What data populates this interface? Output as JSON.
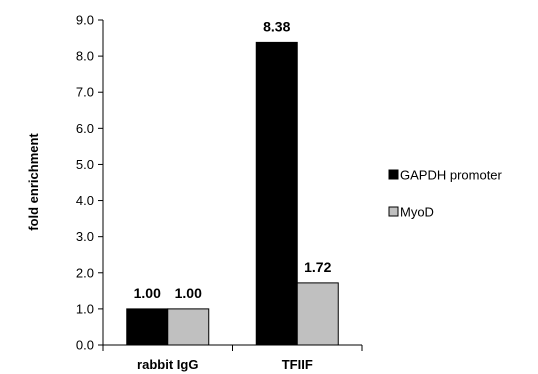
{
  "chart_data": {
    "type": "bar",
    "title": "",
    "xlabel": "",
    "ylabel": "fold enrichment",
    "ylim": [
      0,
      9
    ],
    "yticks": [
      "0.0",
      "1.0",
      "2.0",
      "3.0",
      "4.0",
      "5.0",
      "6.0",
      "7.0",
      "8.0",
      "9.0"
    ],
    "categories": [
      "rabbit IgG",
      "TFIIF"
    ],
    "series": [
      {
        "name": "GAPDH promoter",
        "color": "#000000",
        "values": [
          1.0,
          8.38
        ],
        "labels": [
          "1.00",
          "8.38"
        ]
      },
      {
        "name": "MyoD",
        "color": "#c0c0c0",
        "values": [
          1.0,
          1.72
        ],
        "labels": [
          "1.00",
          "1.72"
        ]
      }
    ],
    "grid": false,
    "legend_position": "right"
  }
}
